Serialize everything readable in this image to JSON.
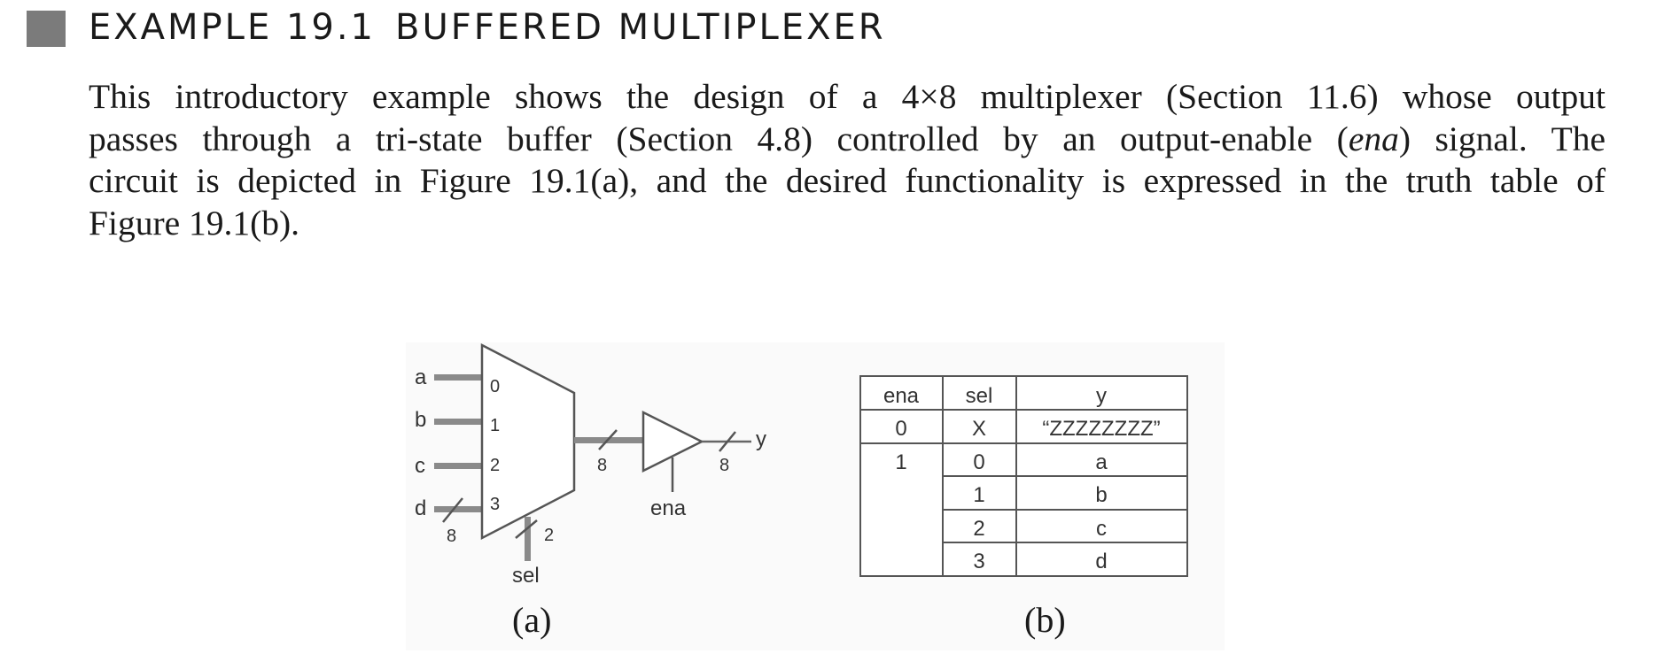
{
  "heading": {
    "number": "EXAMPLE 19.1",
    "title": "BUFFERED MULTIPLEXER"
  },
  "paragraph": {
    "line1": "This introductory example shows the design of a 4×8 multiplexer (Section 11.6) whose output",
    "line2_a": "passes through a tri-state buffer (Section 4.8) controlled by an output-enable (",
    "line2_em": "ena",
    "line2_b": ") signal. The",
    "line3": "circuit is depicted in Figure 19.1(a), and the desired functionality is expressed in the truth table of",
    "line4": "Figure 19.1(b)."
  },
  "figure_a": {
    "caption": "(a)",
    "inputs": [
      "a",
      "b",
      "c",
      "d"
    ],
    "mux_ports": [
      "0",
      "1",
      "2",
      "3"
    ],
    "input_bus_width": "8",
    "sel_label": "sel",
    "sel_width": "2",
    "mux_out_width": "8",
    "buffer_out_width": "8",
    "enable_label": "ena",
    "output_label": "y"
  },
  "figure_b": {
    "caption": "(b)",
    "headers": [
      "ena",
      "sel",
      "y"
    ],
    "rows": [
      [
        "0",
        "X",
        "“ZZZZZZZZ”"
      ],
      [
        "1",
        "0",
        "a"
      ],
      [
        "",
        "1",
        "b"
      ],
      [
        "",
        "2",
        "c"
      ],
      [
        "",
        "3",
        "d"
      ]
    ]
  }
}
